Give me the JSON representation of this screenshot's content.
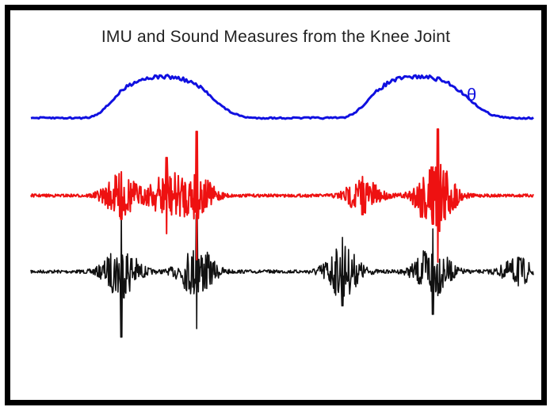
{
  "chart_data": {
    "type": "line",
    "title": "IMU and Sound Measures from the Knee Joint",
    "xlabel": "",
    "ylabel": "",
    "grid": false,
    "series": [
      {
        "name": "θ",
        "color": "#1010e0",
        "kind": "angle",
        "values": [
          0.0,
          0.0,
          0.0,
          0.0,
          0.0,
          0.0,
          0.0,
          0.02,
          0.12,
          0.3,
          0.52,
          0.72,
          0.86,
          0.94,
          0.98,
          1.0,
          1.0,
          0.98,
          0.93,
          0.85,
          0.72,
          0.55,
          0.36,
          0.2,
          0.09,
          0.03,
          0.0,
          0.0,
          0.0,
          0.0,
          0.0,
          0.0,
          0.0,
          0.0,
          0.0,
          0.0,
          0.0,
          0.02,
          0.12,
          0.3,
          0.52,
          0.72,
          0.86,
          0.94,
          0.98,
          1.0,
          1.0,
          0.98,
          0.93,
          0.85,
          0.72,
          0.55,
          0.36,
          0.2,
          0.09,
          0.03,
          0.0,
          0.0,
          0.0,
          0.0
        ]
      },
      {
        "name": "",
        "color": "#ee1111",
        "kind": "burst",
        "bursts": [
          {
            "t": 0.18,
            "amp": 1.0
          },
          {
            "t": 0.27,
            "amp": 1.6
          },
          {
            "t": 0.33,
            "amp": 2.7
          },
          {
            "t": 0.66,
            "amp": 0.8
          },
          {
            "t": 0.8,
            "amp": 1.2
          },
          {
            "t": 0.81,
            "amp": 2.8
          }
        ]
      },
      {
        "name": "",
        "color": "#111111",
        "kind": "burst",
        "bursts": [
          {
            "t": 0.18,
            "amp": 2.3
          },
          {
            "t": 0.33,
            "amp": 2.0
          },
          {
            "t": 0.62,
            "amp": 1.2
          },
          {
            "t": 0.8,
            "amp": 1.5
          },
          {
            "t": 0.97,
            "amp": 0.5
          }
        ]
      }
    ]
  }
}
